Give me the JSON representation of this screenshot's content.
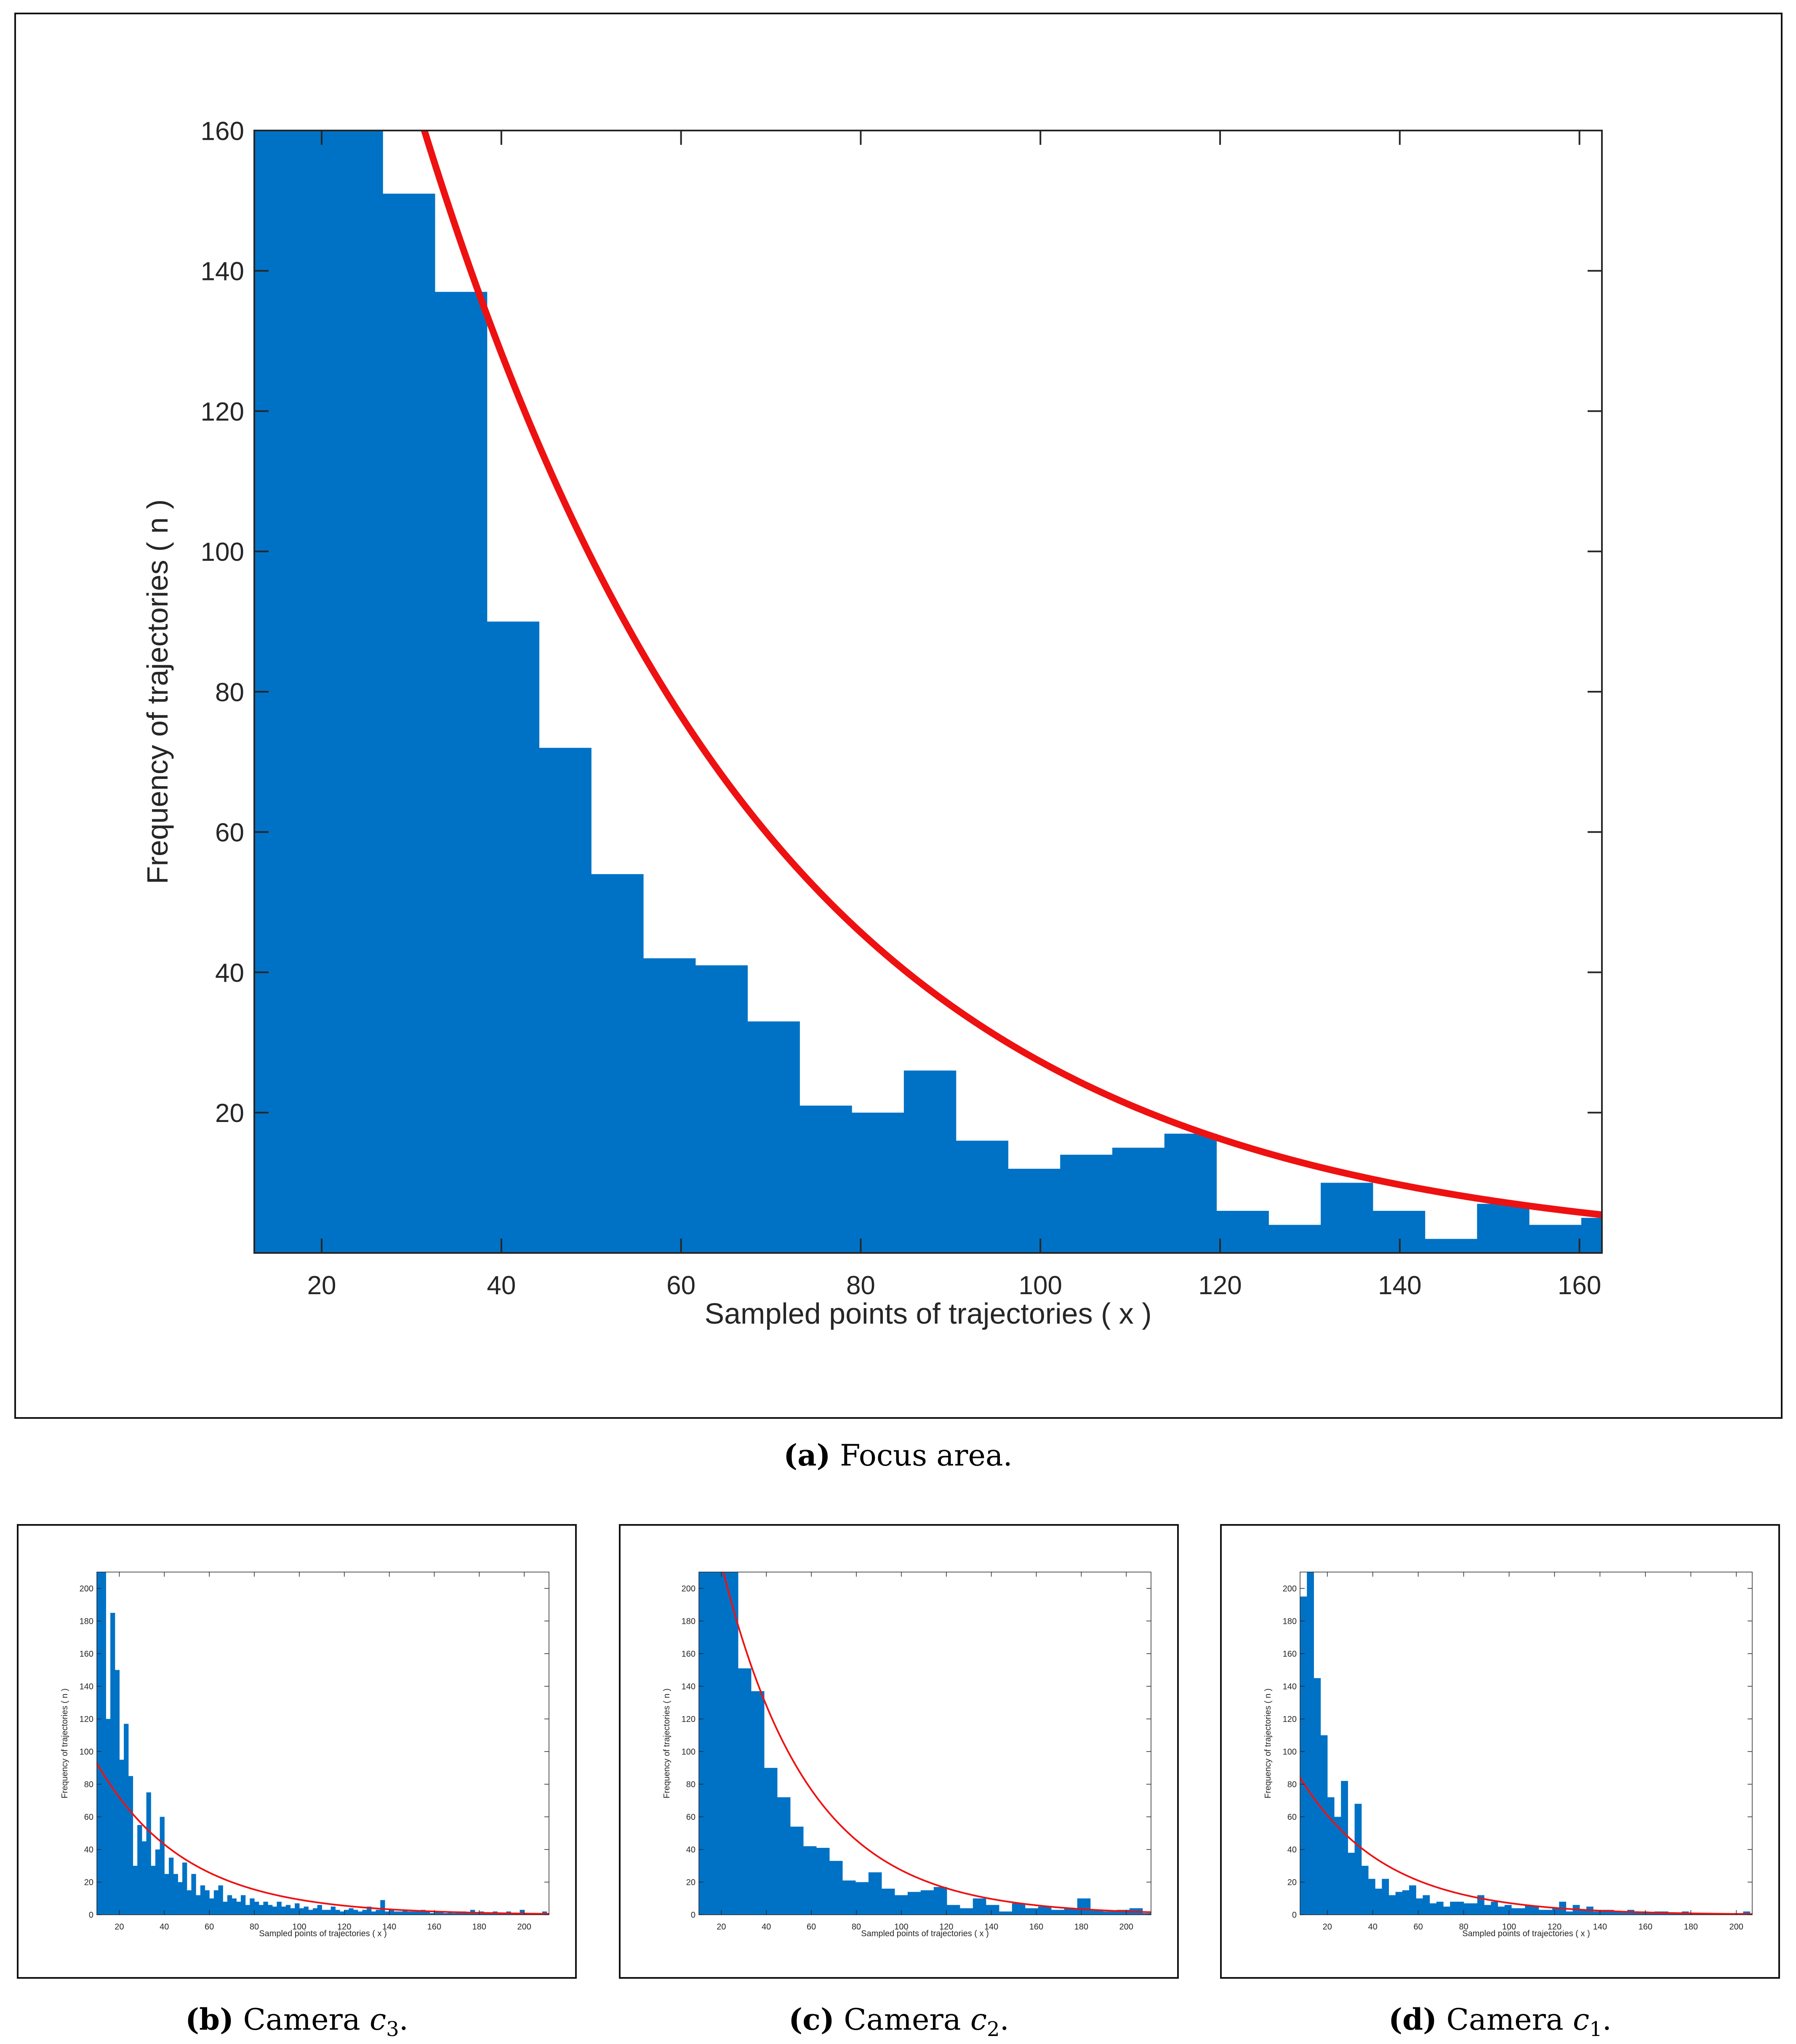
{
  "colors": {
    "bar": "#0072c6",
    "fit": "#ee1111",
    "axis": "#262626",
    "text": "#262626"
  },
  "captions": {
    "a": {
      "label": "(a)",
      "text": "Focus area."
    },
    "b": {
      "label": "(b)",
      "text": "Camera ",
      "cam": "c",
      "sub": "3",
      "end": "."
    },
    "c": {
      "label": "(c)",
      "text": "Camera ",
      "cam": "c",
      "sub": "2",
      "end": "."
    },
    "d": {
      "label": "(d)",
      "text": "Camera ",
      "cam": "c",
      "sub": "1",
      "end": "."
    }
  },
  "chart_data": [
    {
      "id": "a",
      "type": "bar",
      "title": "Focus area.",
      "xlabel": "Sampled points of trajectories ( x )",
      "ylabel": "Frequency of trajectories ( n )",
      "xlim": [
        12.5,
        162.5
      ],
      "ylim": [
        0,
        160
      ],
      "xticks": [
        20,
        40,
        60,
        80,
        100,
        120,
        140,
        160
      ],
      "yticks": [
        20,
        40,
        60,
        80,
        100,
        120,
        140,
        160
      ],
      "bin_edges": [
        12.5,
        26.8,
        32.6,
        38.4,
        44.2,
        50.0,
        55.8,
        61.6,
        67.4,
        73.2,
        79.0,
        84.8,
        90.6,
        96.4,
        102.2,
        108.0,
        113.8,
        119.6,
        125.4,
        131.2,
        137.0,
        142.8,
        148.6,
        154.4,
        160.2,
        162.5
      ],
      "values": [
        160,
        151,
        137,
        90,
        72,
        54,
        42,
        41,
        33,
        21,
        20,
        26,
        16,
        12,
        14,
        15,
        17,
        6,
        4,
        10,
        6,
        2,
        7,
        4,
        5
      ],
      "fit": {
        "type": "exponential",
        "a": 360,
        "b": 0.0258
      }
    },
    {
      "id": "b",
      "type": "bar",
      "title": "Camera c3.",
      "xlabel": "Sampled points of trajectories ( x )",
      "ylabel": "Frequency of trajectories ( n )",
      "xlim": [
        10,
        211
      ],
      "ylim": [
        0,
        210
      ],
      "xticks": [
        20,
        40,
        60,
        80,
        100,
        120,
        140,
        160,
        180,
        200
      ],
      "yticks": [
        0,
        20,
        40,
        60,
        80,
        100,
        120,
        140,
        160,
        180,
        200
      ],
      "bin_start": 10,
      "bin_width": 2,
      "values": [
        210,
        210,
        120,
        185,
        150,
        95,
        117,
        85,
        30,
        55,
        45,
        75,
        30,
        40,
        60,
        25,
        35,
        25,
        20,
        32,
        15,
        25,
        12,
        18,
        15,
        10,
        15,
        18,
        8,
        12,
        10,
        8,
        12,
        6,
        10,
        8,
        6,
        8,
        6,
        5,
        8,
        5,
        6,
        4,
        7,
        4,
        5,
        3,
        4,
        6,
        3,
        3,
        5,
        3,
        2,
        3,
        4,
        3,
        2,
        3,
        5,
        2,
        3,
        9,
        2,
        3,
        2,
        2,
        3,
        2,
        2,
        2,
        3,
        2,
        1,
        2,
        2,
        1,
        2,
        1,
        2,
        2,
        1,
        3,
        1,
        2,
        1,
        1,
        2,
        1,
        1,
        2,
        1,
        1,
        3,
        1,
        1,
        1,
        1,
        2
      ],
      "fit": {
        "type": "exponential",
        "a": 120,
        "b": 0.0256
      }
    },
    {
      "id": "c",
      "type": "bar",
      "title": "Camera c2.",
      "xlabel": "Sampled points of trajectories ( x )",
      "ylabel": "Frequency of trajectories ( n )",
      "xlim": [
        10,
        211
      ],
      "ylim": [
        0,
        210
      ],
      "xticks": [
        20,
        40,
        60,
        80,
        100,
        120,
        140,
        160,
        180,
        200
      ],
      "yticks": [
        0,
        20,
        40,
        60,
        80,
        100,
        120,
        140,
        160,
        180,
        200
      ],
      "bin_start": 10,
      "bin_width": 5.8,
      "values": [
        210,
        210,
        210,
        151,
        137,
        90,
        72,
        54,
        42,
        41,
        33,
        21,
        20,
        26,
        16,
        12,
        14,
        15,
        17,
        6,
        4,
        10,
        6,
        2,
        7,
        4,
        5,
        3,
        4,
        10,
        3,
        2,
        3,
        4,
        1
      ],
      "fit": {
        "type": "exponential",
        "a": 360,
        "b": 0.0258
      }
    },
    {
      "id": "d",
      "type": "bar",
      "title": "Camera c1.",
      "xlabel": "Sampled points of trajectories ( x )",
      "ylabel": "Frequency of trajectories ( n )",
      "xlim": [
        8,
        207
      ],
      "ylim": [
        0,
        210
      ],
      "xticks": [
        20,
        40,
        60,
        80,
        100,
        120,
        140,
        160,
        180,
        200
      ],
      "yticks": [
        0,
        20,
        40,
        60,
        80,
        100,
        120,
        140,
        160,
        180,
        200
      ],
      "bin_start": 8,
      "bin_width": 3,
      "values": [
        195,
        210,
        145,
        110,
        72,
        60,
        82,
        38,
        68,
        30,
        22,
        16,
        22,
        12,
        14,
        15,
        18,
        10,
        12,
        7,
        8,
        5,
        8,
        8,
        7,
        7,
        12,
        6,
        8,
        5,
        6,
        4,
        4,
        6,
        5,
        3,
        3,
        4,
        8,
        2,
        6,
        3,
        5,
        2,
        3,
        3,
        2,
        2,
        3,
        2,
        2,
        1,
        2,
        2,
        1,
        1,
        2,
        1,
        1,
        1,
        1,
        1,
        1,
        1,
        1,
        2
      ],
      "fit": {
        "type": "exponential",
        "a": 104,
        "b": 0.0267
      }
    }
  ]
}
